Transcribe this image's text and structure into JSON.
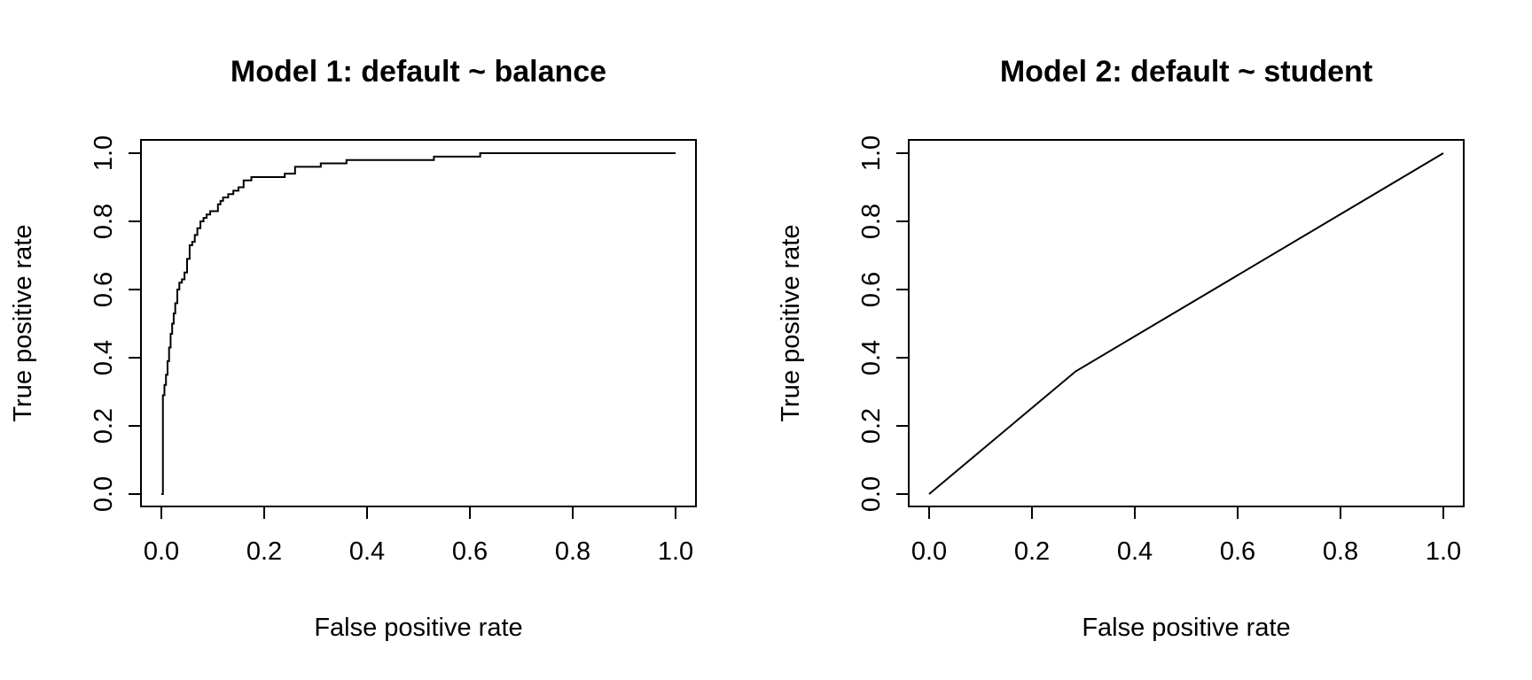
{
  "chart_data": [
    {
      "type": "line",
      "title": "Model 1: default ~ balance",
      "xlabel": "False positive rate",
      "ylabel": "True positive rate",
      "xlim": [
        0,
        1
      ],
      "ylim": [
        0,
        1
      ],
      "xticks": [
        "0.0",
        "0.2",
        "0.4",
        "0.6",
        "0.8",
        "1.0"
      ],
      "yticks": [
        "0.0",
        "0.2",
        "0.4",
        "0.6",
        "0.8",
        "1.0"
      ],
      "grid": false,
      "series": [
        {
          "line_color": "#000000",
          "step": true,
          "x": [
            0,
            0.003,
            0.006,
            0.009,
            0.012,
            0.015,
            0.018,
            0.021,
            0.024,
            0.027,
            0.031,
            0.035,
            0.04,
            0.045,
            0.05,
            0.055,
            0.06,
            0.065,
            0.07,
            0.076,
            0.082,
            0.088,
            0.095,
            0.11,
            0.115,
            0.12,
            0.13,
            0.14,
            0.15,
            0.16,
            0.175,
            0.22,
            0.24,
            0.25,
            0.26,
            0.28,
            0.31,
            0.36,
            0.51,
            0.53,
            0.59,
            0.62,
            1.0
          ],
          "y": [
            0,
            0.29,
            0.32,
            0.35,
            0.39,
            0.43,
            0.47,
            0.5,
            0.53,
            0.56,
            0.6,
            0.62,
            0.63,
            0.65,
            0.69,
            0.73,
            0.74,
            0.76,
            0.78,
            0.8,
            0.81,
            0.82,
            0.83,
            0.85,
            0.86,
            0.87,
            0.88,
            0.89,
            0.9,
            0.92,
            0.93,
            0.93,
            0.94,
            0.94,
            0.96,
            0.96,
            0.97,
            0.98,
            0.98,
            0.99,
            0.99,
            1.0,
            1.0
          ]
        }
      ]
    },
    {
      "type": "line",
      "title": "Model 2: default ~ student",
      "xlabel": "False positive rate",
      "ylabel": "True positive rate",
      "xlim": [
        0,
        1
      ],
      "ylim": [
        0,
        1
      ],
      "xticks": [
        "0.0",
        "0.2",
        "0.4",
        "0.6",
        "0.8",
        "1.0"
      ],
      "yticks": [
        "0.0",
        "0.2",
        "0.4",
        "0.6",
        "0.8",
        "1.0"
      ],
      "grid": false,
      "series": [
        {
          "line_color": "#000000",
          "step": false,
          "x": [
            0,
            0.285,
            1.0
          ],
          "y": [
            0,
            0.36,
            1.0
          ]
        }
      ]
    }
  ]
}
